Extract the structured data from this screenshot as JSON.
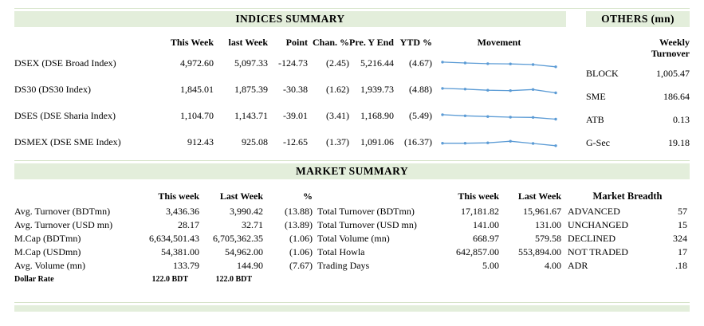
{
  "colors": {
    "header_bg": "#e3eedb",
    "rule_line": "#d5e3c8",
    "sparkline": "#5b9bd5",
    "text": "#000000"
  },
  "indices_summary": {
    "title": "INDICES SUMMARY",
    "columns": {
      "this_week": "This Week",
      "last_week": "last Week",
      "point": "Point",
      "chan_pct": "Chan. %",
      "pre_y_end": "Pre. Y End",
      "ytd_pct": "YTD %",
      "movement": "Movement"
    },
    "rows": [
      {
        "label": "DSEX (DSE Broad Index)",
        "this_week": "4,972.60",
        "last_week": "5,097.33",
        "point": "-124.73",
        "chan_pct": "(2.45)",
        "pre_y_end": "5,216.44",
        "ytd_pct": "(4.67)",
        "movement": [
          72,
          64,
          58,
          56,
          50,
          30
        ]
      },
      {
        "label": "DS30 (DS30 Index)",
        "this_week": "1,845.01",
        "last_week": "1,875.39",
        "point": "-30.38",
        "chan_pct": "(1.62)",
        "pre_y_end": "1,939.73",
        "ytd_pct": "(4.88)",
        "movement": [
          72,
          66,
          56,
          52,
          62,
          32
        ]
      },
      {
        "label": "DSES (DSE Sharia Index)",
        "this_week": "1,104.70",
        "last_week": "1,143.71",
        "point": "-39.01",
        "chan_pct": "(3.41)",
        "pre_y_end": "1,168.90",
        "ytd_pct": "(5.49)",
        "movement": [
          72,
          62,
          56,
          50,
          48,
          32
        ]
      },
      {
        "label": "DSMEX (DSE SME Index)",
        "this_week": "912.43",
        "last_week": "925.08",
        "point": "-12.65",
        "chan_pct": "(1.37)",
        "pre_y_end": "1,091.06",
        "ytd_pct": "(16.37)",
        "movement": [
          52,
          52,
          56,
          70,
          50,
          30
        ]
      }
    ]
  },
  "others": {
    "title": "OTHERS (mn)",
    "column": "Weekly Turnover",
    "rows": [
      {
        "label": "BLOCK",
        "value": "1,005.47"
      },
      {
        "label": "SME",
        "value": "186.64"
      },
      {
        "label": "ATB",
        "value": "0.13"
      },
      {
        "label": "G-Sec",
        "value": "19.18"
      }
    ]
  },
  "market_summary": {
    "title": "MARKET SUMMARY",
    "left": {
      "headers": {
        "this_week": "This week",
        "last_week": "Last Week",
        "pct": "%"
      },
      "rows": [
        {
          "label": "Avg. Turnover (BDTmn)",
          "this_week": "3,436.36",
          "last_week": "3,990.42",
          "pct": "(13.88)"
        },
        {
          "label": "Avg. Turnover (USD mn)",
          "this_week": "28.17",
          "last_week": "32.71",
          "pct": "(13.89)"
        },
        {
          "label": "M.Cap (BDTmn)",
          "this_week": "6,634,501.43",
          "last_week": "6,705,362.35",
          "pct": "(1.06)"
        },
        {
          "label": "M.Cap (USDmn)",
          "this_week": "54,381.00",
          "last_week": "54,962.00",
          "pct": "(1.06)"
        },
        {
          "label": "Avg. Volume (mn)",
          "this_week": "133.79",
          "last_week": "144.90",
          "pct": "(7.67)"
        }
      ],
      "footer": {
        "label": "Dollar Rate",
        "this_week": "122.0 BDT",
        "last_week": "122.0 BDT"
      }
    },
    "middle": {
      "headers": {
        "this_week": "This week",
        "last_week": "Last Week"
      },
      "rows": [
        {
          "label": "Total Turnover (BDTmn)",
          "this_week": "17,181.82",
          "last_week": "15,961.67"
        },
        {
          "label": "Total Turnover (USD mn)",
          "this_week": "141.00",
          "last_week": "131.00"
        },
        {
          "label": "Total Volume (mn)",
          "this_week": "668.97",
          "last_week": "579.58"
        },
        {
          "label": "Total Howla",
          "this_week": "642,857.00",
          "last_week": "553,894.00"
        },
        {
          "label": "Trading Days",
          "this_week": "5.00",
          "last_week": "4.00"
        }
      ]
    },
    "breadth": {
      "title": "Market Breadth",
      "rows": [
        {
          "label": "ADVANCED",
          "value": "57"
        },
        {
          "label": "UNCHANGED",
          "value": "15"
        },
        {
          "label": "DECLINED",
          "value": "324"
        },
        {
          "label": "NOT TRADED",
          "value": "17"
        },
        {
          "label": "ADR",
          "value": ".18"
        }
      ]
    }
  },
  "chart_data": [
    {
      "type": "line",
      "title": "DSEX movement sparkline",
      "x": [
        1,
        2,
        3,
        4,
        5,
        6
      ],
      "values": [
        72,
        64,
        58,
        56,
        50,
        30
      ],
      "legend_position": "none"
    },
    {
      "type": "line",
      "title": "DS30 movement sparkline",
      "x": [
        1,
        2,
        3,
        4,
        5,
        6
      ],
      "values": [
        72,
        66,
        56,
        52,
        62,
        32
      ],
      "legend_position": "none"
    },
    {
      "type": "line",
      "title": "DSES movement sparkline",
      "x": [
        1,
        2,
        3,
        4,
        5,
        6
      ],
      "values": [
        72,
        62,
        56,
        50,
        48,
        32
      ],
      "legend_position": "none"
    },
    {
      "type": "line",
      "title": "DSMEX movement sparkline",
      "x": [
        1,
        2,
        3,
        4,
        5,
        6
      ],
      "values": [
        52,
        52,
        56,
        70,
        50,
        30
      ],
      "legend_position": "none"
    }
  ]
}
